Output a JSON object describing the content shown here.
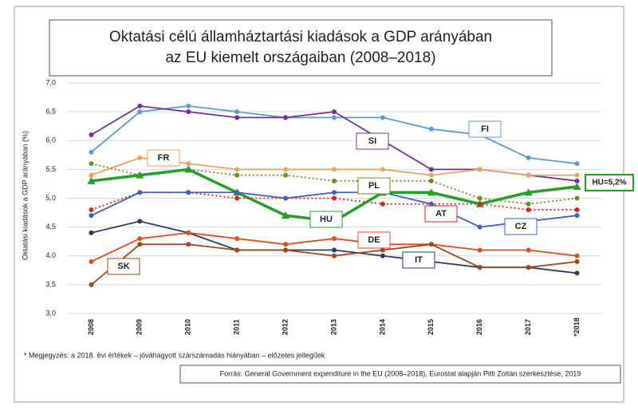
{
  "chart_data": {
    "type": "line",
    "title": [
      "Oktatási célú államháztartási kiadások a GDP arányában",
      "az EU kiemelt országaiban (2008–2018)"
    ],
    "y_label": "Oktatási kiadások a GDP arányában (%)",
    "categories": [
      "2008",
      "2009",
      "2010",
      "2011",
      "2012",
      "2013",
      "2014",
      "2015",
      "2016",
      "2017",
      "*2018"
    ],
    "ylim": [
      3.0,
      7.0
    ],
    "yticks": [
      {
        "value": 3.0,
        "label": "3,0"
      },
      {
        "value": 3.5,
        "label": "3,5"
      },
      {
        "value": 4.0,
        "label": "4,0"
      },
      {
        "value": 4.5,
        "label": "4,5"
      },
      {
        "value": 5.0,
        "label": "5,0"
      },
      {
        "value": 5.5,
        "label": "5,5"
      },
      {
        "value": 6.0,
        "label": "6,0"
      },
      {
        "value": 6.5,
        "label": "6,5"
      },
      {
        "value": 7.0,
        "label": "7,0"
      }
    ],
    "grid": true,
    "series": [
      {
        "name": "FI",
        "color": "#5b9bd5",
        "values": [
          5.8,
          6.5,
          6.6,
          6.5,
          6.4,
          6.4,
          6.4,
          6.2,
          6.1,
          5.7,
          5.6
        ]
      },
      {
        "name": "SI",
        "color": "#7030a0",
        "values": [
          6.1,
          6.6,
          6.5,
          6.4,
          6.4,
          6.5,
          6.0,
          5.5,
          5.5,
          5.4,
          5.3
        ]
      },
      {
        "name": "FR",
        "color": "#f0a060",
        "values": [
          5.4,
          5.7,
          5.6,
          5.5,
          5.5,
          5.5,
          5.5,
          5.4,
          5.5,
          5.4,
          5.4
        ]
      },
      {
        "name": "PL",
        "color": "#6b8e23",
        "dashed": true,
        "values": [
          5.6,
          5.4,
          5.5,
          5.4,
          5.4,
          5.3,
          5.3,
          5.3,
          5.0,
          4.9,
          5.0
        ]
      },
      {
        "name": "HU",
        "color": "#22a02a",
        "line_width": 3.5,
        "values": [
          5.3,
          5.4,
          5.5,
          5.1,
          4.7,
          4.6,
          5.1,
          5.1,
          4.9,
          5.1,
          5.2
        ]
      },
      {
        "name": "AT",
        "color": "#e02020",
        "dashed": true,
        "values": [
          4.8,
          5.1,
          5.1,
          5.0,
          5.0,
          5.0,
          4.9,
          4.9,
          4.9,
          4.8,
          4.8
        ]
      },
      {
        "name": "CZ",
        "color": "#4060c0",
        "values": [
          4.7,
          5.1,
          5.1,
          5.1,
          5.0,
          5.1,
          5.1,
          4.9,
          4.5,
          4.6,
          4.7
        ]
      },
      {
        "name": "IT",
        "color": "#2e3a6a",
        "values": [
          4.4,
          4.6,
          4.4,
          4.1,
          4.1,
          4.1,
          4.0,
          3.9,
          3.8,
          3.8,
          3.7
        ]
      },
      {
        "name": "DE",
        "color": "#e84a20",
        "values": [
          3.9,
          4.3,
          4.4,
          4.3,
          4.2,
          4.3,
          4.2,
          4.2,
          4.1,
          4.1,
          4.0
        ]
      },
      {
        "name": "SK",
        "color": "#9c4a1a",
        "values": [
          3.5,
          4.2,
          4.2,
          4.1,
          4.1,
          4.0,
          4.1,
          4.2,
          3.8,
          3.8,
          3.9
        ]
      }
    ],
    "annotation": "HU=5,2%",
    "footnote": "* Megjegyzés: a 2018. évi értékek – jóváhagyott szárszámadás hiányában – előzetes jellegűek",
    "source": "Forrás: General Government expenditure in the EU (2008–2018), Eurostat alapján Pitti Zoltán szerkesztése, 2019"
  }
}
